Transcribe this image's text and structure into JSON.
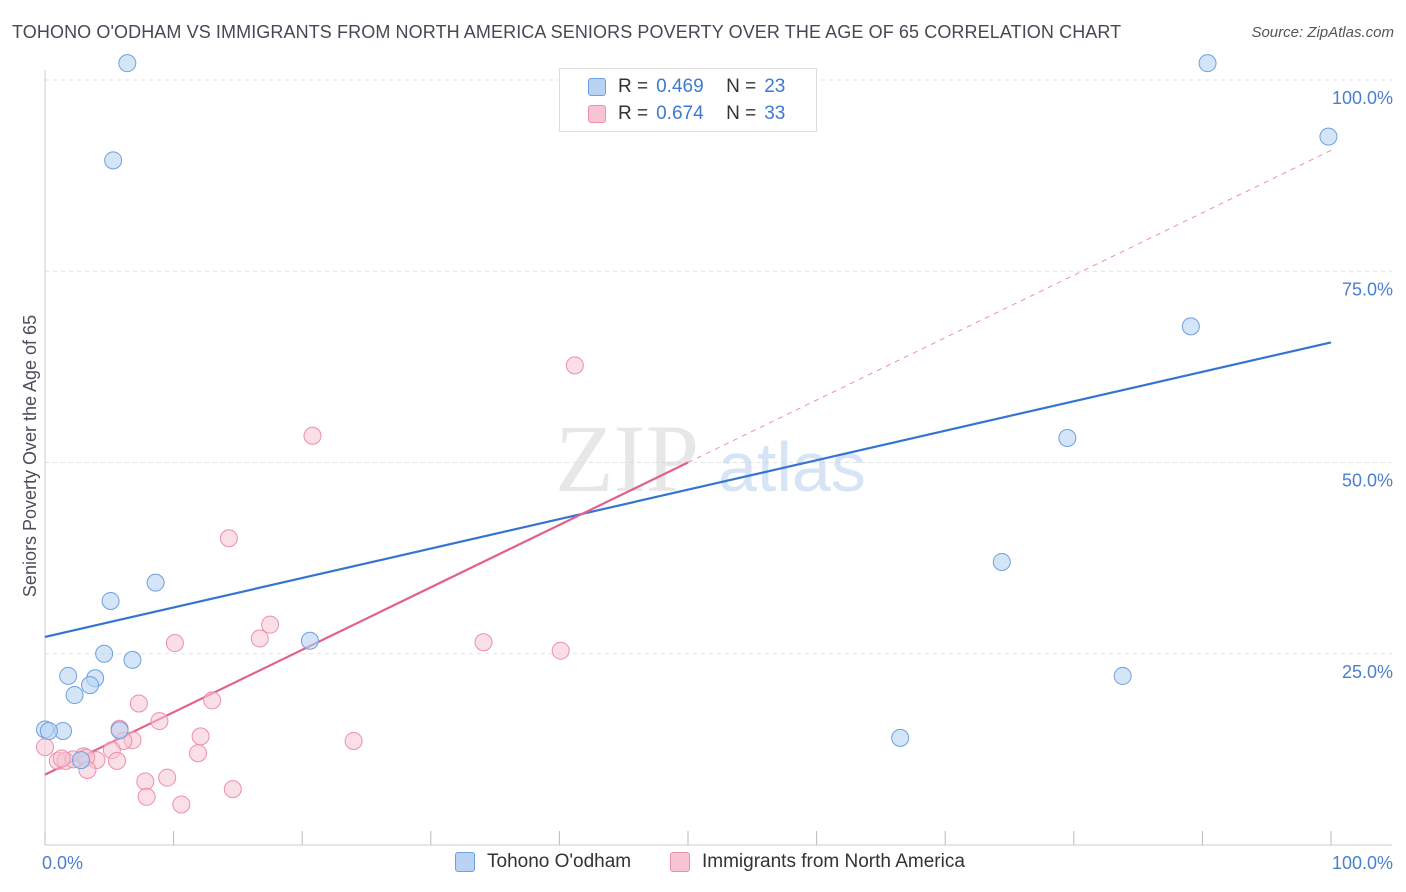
{
  "header": {
    "title": "TOHONO O'ODHAM VS IMMIGRANTS FROM NORTH AMERICA SENIORS POVERTY OVER THE AGE OF 65 CORRELATION CHART",
    "source": "Source: ZipAtlas.com"
  },
  "watermark": {
    "zip": "ZIP",
    "atlas": "atlas"
  },
  "legend": {
    "rows": [
      {
        "r_label": "R =",
        "r_value": "0.469",
        "n_label": "N =",
        "n_value": "23"
      },
      {
        "r_label": "R =",
        "r_value": "0.674",
        "n_label": "N =",
        "n_value": "33"
      }
    ]
  },
  "bottom_legend": {
    "series1": "Tohono O'odham",
    "series2": "Immigrants from North America"
  },
  "colors": {
    "series1_fill": "#b9d3f4",
    "series1_stroke": "#6f9fe0",
    "series1_line": "#3574d1",
    "series2_fill": "#f8c4d3",
    "series2_stroke": "#ec8fab",
    "series2_line": "#e2608d",
    "tick_text": "#4a7fd0",
    "grid": "#e2e2e2"
  },
  "chart_data": {
    "type": "scatter",
    "title": "TOHONO O'ODHAM VS IMMIGRANTS FROM NORTH AMERICA SENIORS POVERTY OVER THE AGE OF 65 CORRELATION CHART",
    "xlabel": "",
    "ylabel": "Seniors Poverty Over the Age of 65",
    "xlim": [
      0,
      100
    ],
    "ylim": [
      0,
      100
    ],
    "x_tick_labels": [
      "0.0%",
      "100.0%"
    ],
    "y_tick_labels": [
      "25.0%",
      "50.0%",
      "75.0%",
      "100.0%"
    ],
    "y_ticks": [
      25,
      50,
      75,
      100
    ],
    "grid": true,
    "legend_position": "top-center",
    "series": [
      {
        "name": "Tohono O'odham",
        "r": 0.469,
        "n": 23,
        "points": [
          [
            6.4,
            102.2
          ],
          [
            90.4,
            102.2
          ],
          [
            5.3,
            89.5
          ],
          [
            99.8,
            92.6
          ],
          [
            89.1,
            67.8
          ],
          [
            79.5,
            53.2
          ],
          [
            74.4,
            37.0
          ],
          [
            8.6,
            34.3
          ],
          [
            5.1,
            31.9
          ],
          [
            20.6,
            26.7
          ],
          [
            4.6,
            25.0
          ],
          [
            6.8,
            24.2
          ],
          [
            1.8,
            22.1
          ],
          [
            3.9,
            21.8
          ],
          [
            3.5,
            20.9
          ],
          [
            83.8,
            22.1
          ],
          [
            2.3,
            19.6
          ],
          [
            0.0,
            15.1
          ],
          [
            1.4,
            14.9
          ],
          [
            0.3,
            14.9
          ],
          [
            5.8,
            15.0
          ],
          [
            66.5,
            14.0
          ],
          [
            2.8,
            11.1
          ]
        ],
        "trend": {
          "x": [
            0,
            100
          ],
          "y": [
            27.2,
            65.7
          ]
        }
      },
      {
        "name": "Immigrants from North America",
        "r": 0.674,
        "n": 33,
        "points": [
          [
            41.2,
            62.7
          ],
          [
            20.8,
            53.5
          ],
          [
            14.3,
            40.1
          ],
          [
            17.5,
            28.8
          ],
          [
            16.7,
            27.0
          ],
          [
            10.1,
            26.4
          ],
          [
            34.1,
            26.5
          ],
          [
            40.1,
            25.4
          ],
          [
            13.0,
            18.9
          ],
          [
            7.3,
            18.5
          ],
          [
            8.9,
            16.2
          ],
          [
            5.8,
            15.2
          ],
          [
            12.1,
            14.2
          ],
          [
            6.8,
            13.7
          ],
          [
            6.1,
            13.6
          ],
          [
            24.0,
            13.6
          ],
          [
            11.9,
            12.0
          ],
          [
            5.2,
            12.4
          ],
          [
            3.0,
            11.6
          ],
          [
            0.0,
            12.8
          ],
          [
            4.0,
            11.1
          ],
          [
            1.0,
            11.0
          ],
          [
            1.6,
            11.0
          ],
          [
            2.2,
            11.2
          ],
          [
            3.2,
            11.4
          ],
          [
            5.6,
            11.0
          ],
          [
            1.3,
            11.3
          ],
          [
            3.3,
            9.8
          ],
          [
            7.8,
            8.3
          ],
          [
            9.5,
            8.8
          ],
          [
            7.9,
            6.3
          ],
          [
            14.6,
            7.3
          ],
          [
            10.6,
            5.3
          ]
        ],
        "trend": {
          "x": [
            0,
            50
          ],
          "y": [
            9.2,
            50.0
          ]
        },
        "trend_extension": {
          "x": [
            50,
            100
          ],
          "y": [
            50.0,
            90.8
          ]
        }
      }
    ]
  }
}
